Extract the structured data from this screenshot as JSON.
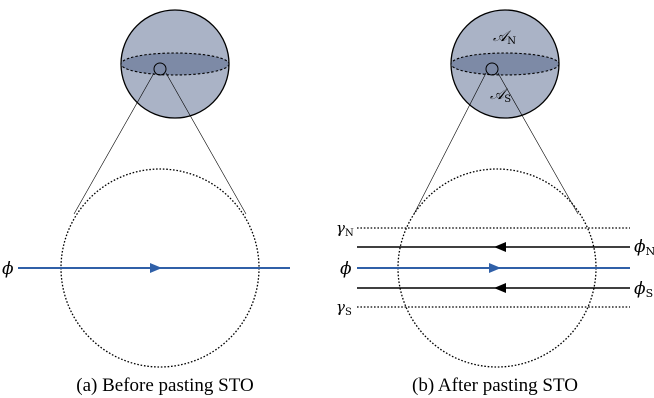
{
  "colors": {
    "sphere_fill": "#aab3c6",
    "equator_fill": "#7d8aa6",
    "stroke": "#000000",
    "blue_line": "#3060a8"
  },
  "panel_a": {
    "caption": "(a) Before pasting STO",
    "phi_label": "ϕ"
  },
  "panel_b": {
    "caption": "(b) After pasting STO",
    "gamma_n_label": "γ",
    "gamma_n_sub": "N",
    "phi_n_label": "ϕ",
    "phi_n_sub": "N",
    "phi_label": "ϕ",
    "phi_s_label": "ϕ",
    "phi_s_sub": "S",
    "gamma_s_label": "γ",
    "gamma_s_sub": "S",
    "a_n_label": "𝒜",
    "a_n_sub": "N",
    "a_s_label": "𝒜",
    "a_s_sub": "S"
  }
}
